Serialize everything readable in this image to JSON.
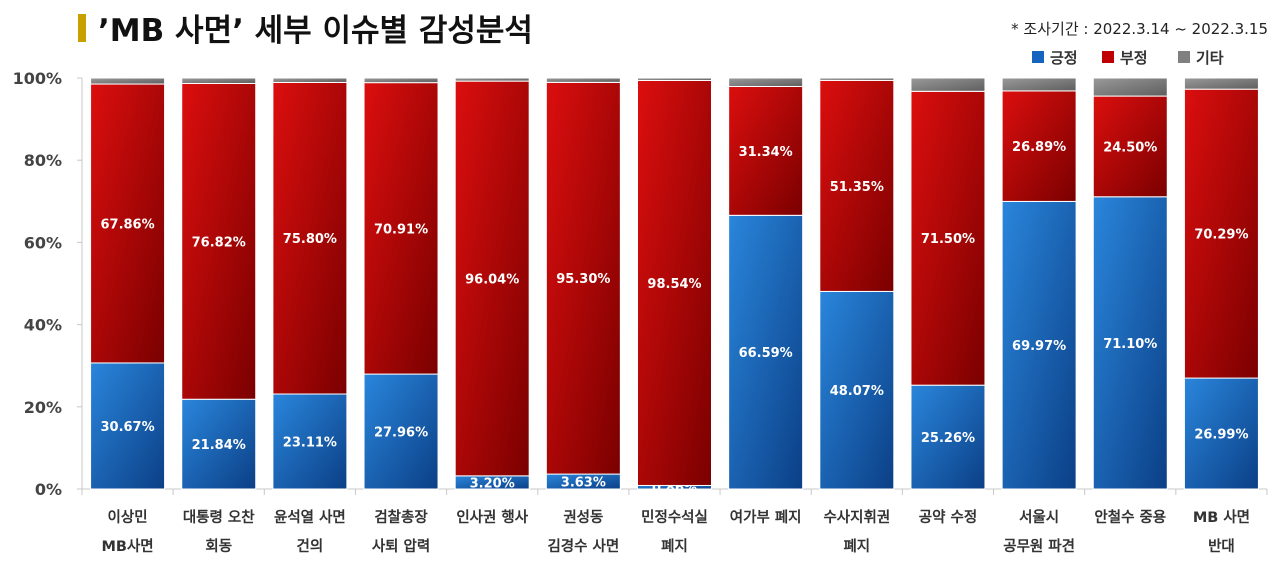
{
  "title": "’MB 사면’ 세부 이슈별 감성분석",
  "period": "* 조사기간 : 2022.3.14 ~ 2022.3.15",
  "colors": {
    "positive": "#1565c0",
    "negative": "#c00000",
    "other": "#808080",
    "accent": "#c8a000"
  },
  "chart_data": {
    "type": "bar",
    "stacked": true,
    "categories": [
      [
        "이상민",
        "MB사면"
      ],
      [
        "대통령 오찬",
        "회동"
      ],
      [
        "윤석열 사면",
        "건의"
      ],
      [
        "검찰총장",
        "사퇴 압력"
      ],
      [
        "인사권 행사"
      ],
      [
        "권성동",
        "김경수 사면"
      ],
      [
        "민정수석실",
        "폐지"
      ],
      [
        "여가부 폐지"
      ],
      [
        "수사지휘권",
        "폐지"
      ],
      [
        "공약 수정"
      ],
      [
        "서울시",
        "공무원 파견"
      ],
      [
        "안철수 중용"
      ],
      [
        "MB 사면",
        "반대"
      ]
    ],
    "series": [
      {
        "name": "긍정",
        "values": [
          30.67,
          21.84,
          23.11,
          27.96,
          3.2,
          3.63,
          0.86,
          66.59,
          48.07,
          25.26,
          69.97,
          71.1,
          26.99
        ],
        "labels": [
          "30.67%",
          "21.84%",
          "23.11%",
          "27.96%",
          "3.20%",
          "3.63%",
          "0.86%",
          "66.59%",
          "48.07%",
          "25.26%",
          "69.97%",
          "71.10%",
          "26.99%"
        ]
      },
      {
        "name": "부정",
        "values": [
          67.86,
          76.82,
          75.8,
          70.91,
          96.04,
          95.3,
          98.54,
          31.34,
          51.35,
          71.5,
          26.89,
          24.5,
          70.29
        ],
        "labels": [
          "67.86%",
          "76.82%",
          "75.80%",
          "70.91%",
          "96.04%",
          "95.30%",
          "98.54%",
          "31.34%",
          "51.35%",
          "71.50%",
          "26.89%",
          "24.50%",
          "70.29%"
        ]
      },
      {
        "name": "기타",
        "values": [
          1.47,
          1.34,
          1.09,
          1.13,
          0.76,
          1.07,
          0.6,
          2.07,
          0.58,
          3.24,
          3.14,
          4.4,
          2.72
        ]
      }
    ],
    "yticks": [
      "0%",
      "20%",
      "40%",
      "60%",
      "80%",
      "100%"
    ],
    "ylim": [
      0,
      100
    ],
    "legend": "top-right",
    "grid": false
  }
}
